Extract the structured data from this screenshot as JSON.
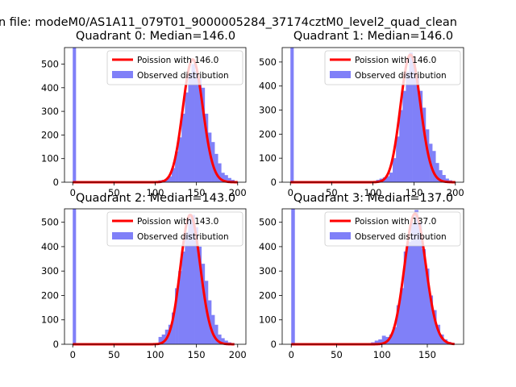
{
  "figure": {
    "suptitle": "n file: modeM0/AS1A11_079T01_9000005284_37174cztM0_level2_quad_clean"
  },
  "chart_data": [
    {
      "type": "bar",
      "title": "Quadrant 0: Median=146.0",
      "xlim": [
        -10,
        210
      ],
      "ylim": [
        0,
        570
      ],
      "xticks": [
        0,
        50,
        100,
        150,
        200
      ],
      "yticks": [
        0,
        100,
        200,
        300,
        400,
        500
      ],
      "bin_width": 4,
      "bar_color": "#8080f8",
      "line_color": "#ff0000",
      "legend_position": "upper right",
      "spike": {
        "x": 0,
        "value": 570
      },
      "series": [
        {
          "name": "Poission with 146.0",
          "type": "line",
          "lambda": 146.0,
          "peak": 520
        },
        {
          "name": "Observed distribution",
          "type": "bar",
          "x": [
            100,
            104,
            108,
            112,
            116,
            120,
            124,
            128,
            132,
            136,
            140,
            144,
            148,
            152,
            156,
            160,
            164,
            168,
            172,
            176,
            180,
            184,
            188,
            192,
            196
          ],
          "values": [
            5,
            8,
            10,
            15,
            25,
            60,
            130,
            190,
            290,
            380,
            460,
            500,
            470,
            440,
            400,
            290,
            210,
            170,
            120,
            80,
            40,
            30,
            18,
            10,
            4
          ]
        }
      ]
    },
    {
      "type": "bar",
      "title": "Quadrant 1: Median=146.0",
      "xlim": [
        -10,
        210
      ],
      "ylim": [
        0,
        560
      ],
      "xticks": [
        0,
        50,
        100,
        150,
        200
      ],
      "yticks": [
        0,
        100,
        200,
        300,
        400,
        500
      ],
      "bin_width": 4,
      "bar_color": "#8080f8",
      "line_color": "#ff0000",
      "legend_position": "upper right",
      "spike": {
        "x": 0,
        "value": 560
      },
      "series": [
        {
          "name": "Poission with 146.0",
          "type": "line",
          "lambda": 146.0,
          "peak": 530
        },
        {
          "name": "Observed distribution",
          "type": "bar",
          "x": [
            100,
            104,
            108,
            112,
            116,
            120,
            124,
            128,
            132,
            136,
            140,
            144,
            148,
            152,
            156,
            160,
            164,
            168,
            172,
            176,
            180,
            184,
            188,
            192,
            196
          ],
          "values": [
            5,
            10,
            15,
            20,
            25,
            40,
            100,
            190,
            300,
            380,
            460,
            540,
            490,
            440,
            380,
            310,
            220,
            160,
            130,
            80,
            50,
            30,
            15,
            8,
            4
          ]
        }
      ]
    },
    {
      "type": "bar",
      "title": "Quadrant 2: Median=143.0",
      "xlim": [
        -10,
        210
      ],
      "ylim": [
        0,
        555
      ],
      "xticks": [
        0,
        50,
        100,
        150,
        200
      ],
      "yticks": [
        0,
        100,
        200,
        300,
        400,
        500
      ],
      "bin_width": 4,
      "bar_color": "#8080f8",
      "line_color": "#ff0000",
      "legend_position": "upper right",
      "spike": {
        "x": 0,
        "value": 555
      },
      "series": [
        {
          "name": "Poission with 143.0",
          "type": "line",
          "lambda": 143.0,
          "peak": 530
        },
        {
          "name": "Observed distribution",
          "type": "bar",
          "x": [
            100,
            104,
            108,
            112,
            116,
            120,
            124,
            128,
            132,
            136,
            140,
            144,
            148,
            152,
            156,
            160,
            164,
            168,
            172,
            176,
            180,
            184,
            188,
            192
          ],
          "values": [
            5,
            30,
            40,
            60,
            80,
            130,
            230,
            300,
            380,
            460,
            520,
            530,
            480,
            400,
            330,
            260,
            180,
            120,
            80,
            40,
            25,
            15,
            8,
            4
          ]
        }
      ]
    },
    {
      "type": "bar",
      "title": "Quadrant 3: Median=137.0",
      "xlim": [
        -10,
        190
      ],
      "ylim": [
        0,
        555
      ],
      "xticks": [
        0,
        50,
        100,
        150
      ],
      "yticks": [
        0,
        100,
        200,
        300,
        400,
        500
      ],
      "bin_width": 4,
      "bar_color": "#8080f8",
      "line_color": "#ff0000",
      "legend_position": "upper right",
      "spike": {
        "x": 0,
        "value": 555
      },
      "series": [
        {
          "name": "Poission with 137.0",
          "type": "line",
          "lambda": 137.0,
          "peak": 535
        },
        {
          "name": "Observed distribution",
          "type": "bar",
          "x": [
            84,
            88,
            92,
            96,
            100,
            104,
            108,
            112,
            116,
            120,
            124,
            128,
            132,
            136,
            140,
            144,
            148,
            152,
            156,
            160,
            164,
            168,
            172,
            176
          ],
          "values": [
            5,
            8,
            15,
            20,
            35,
            30,
            40,
            70,
            160,
            230,
            380,
            420,
            500,
            550,
            500,
            390,
            310,
            200,
            140,
            80,
            40,
            20,
            10,
            5
          ]
        }
      ]
    }
  ]
}
